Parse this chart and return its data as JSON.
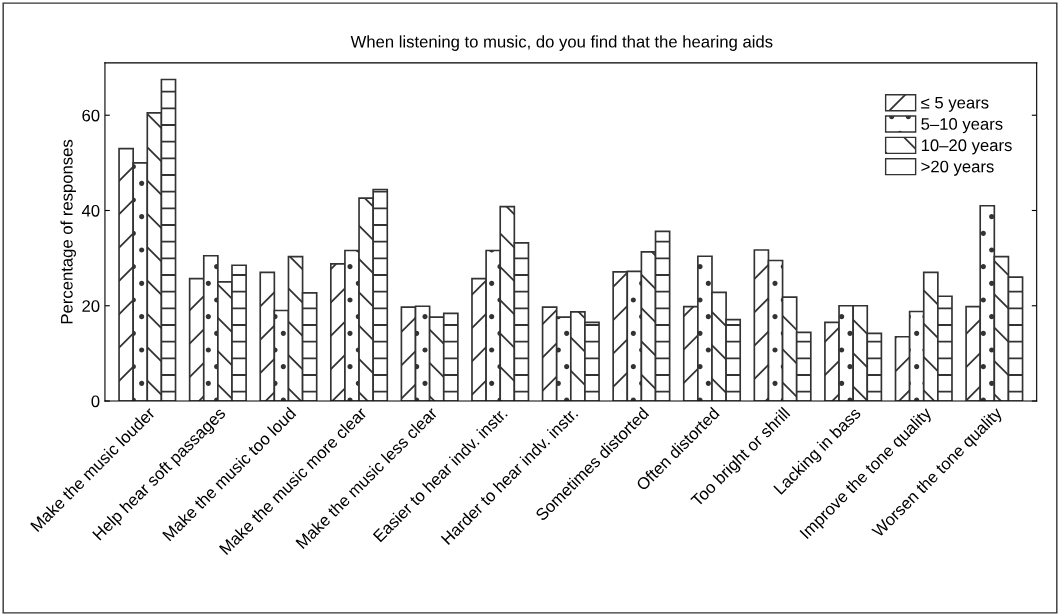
{
  "chart_data": {
    "type": "bar",
    "title": "When listening to music, do you find that the hearing aids",
    "ylabel": "Percentage of responses",
    "categories": [
      "Make the music louder",
      "Help hear soft passages",
      "Make the music too loud",
      "Make the music more clear",
      "Make the music less clear",
      "Easier to hear indv. instr.",
      "Harder to hear indv. instr.",
      "Sometimes distorted",
      "Often distorted",
      "Too bright or shrill",
      "Lacking in bass",
      "Improve the tone quality",
      "Worsen the tone quality"
    ],
    "series": [
      {
        "name": "≤ 5 years",
        "color": "#333333",
        "values": [
          53,
          25.7,
          27,
          28.8,
          19.7,
          25.7,
          19.7,
          27.1,
          19.8,
          31.7,
          16.5,
          13.5,
          19.8
        ]
      },
      {
        "name": "5–10 years",
        "color": "#333333",
        "values": [
          50,
          30.5,
          19,
          31.6,
          19.9,
          31.6,
          17.6,
          27.2,
          30.4,
          29.5,
          20,
          18.8,
          41
        ]
      },
      {
        "name": "10–20 years",
        "color": "#333333",
        "values": [
          60.5,
          25,
          30.3,
          42.6,
          17.6,
          40.8,
          18.7,
          31.3,
          22.8,
          21.8,
          20,
          27,
          30.3
        ]
      },
      {
        "name": ">20 years",
        "color": "#333333",
        "values": [
          67.5,
          28.5,
          22.7,
          44.4,
          18.4,
          33.2,
          16.5,
          35.6,
          17.1,
          14.4,
          14.2,
          22,
          26
        ]
      }
    ],
    "ylim": [
      0,
      71
    ],
    "yticks": [
      0,
      20,
      40,
      60
    ],
    "grid": false,
    "legend": "top right"
  }
}
